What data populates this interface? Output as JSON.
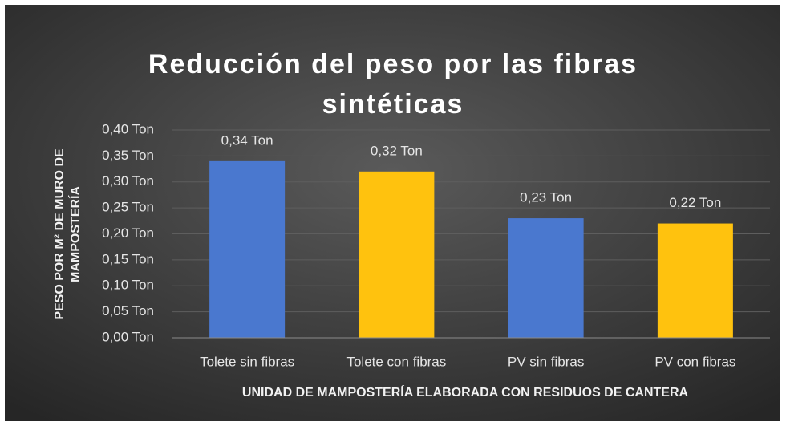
{
  "chart_data": {
    "type": "bar",
    "title": [
      "Reducción del peso por las fibras",
      "sintéticas"
    ],
    "categories": [
      "Tolete sin fibras",
      "Tolete con fibras",
      "PV sin fibras",
      "PV con fibras"
    ],
    "values": [
      0.34,
      0.32,
      0.23,
      0.22
    ],
    "value_labels": [
      "0,34 Ton",
      "0,32 Ton",
      "0,23 Ton",
      "0,22 Ton"
    ],
    "colors": [
      "#4a78cf",
      "#ffc20e",
      "#4a78cf",
      "#ffc20e"
    ],
    "ylim": [
      0,
      0.4
    ],
    "yticks": [
      {
        "value": 0,
        "label": "0,00 Ton"
      },
      {
        "value": 0.05,
        "label": "0,05 Ton"
      },
      {
        "value": 0.1,
        "label": "0,10 Ton"
      },
      {
        "value": 0.15,
        "label": "0,15 Ton"
      },
      {
        "value": 0.2,
        "label": "0,20 Ton"
      },
      {
        "value": 0.25,
        "label": "0,25 Ton"
      },
      {
        "value": 0.3,
        "label": "0,30 Ton"
      },
      {
        "value": 0.35,
        "label": "0,35 Ton"
      },
      {
        "value": 0.4,
        "label": "0,40 Ton"
      }
    ],
    "ylabel": [
      "PESO POR M² DE MURO DE",
      "MAMPOSTERÍA"
    ],
    "xlabel": "UNIDAD DE MAMPOSTERÍA ELABORADA CON RESIDUOS DE CANTERA",
    "grid": true
  }
}
